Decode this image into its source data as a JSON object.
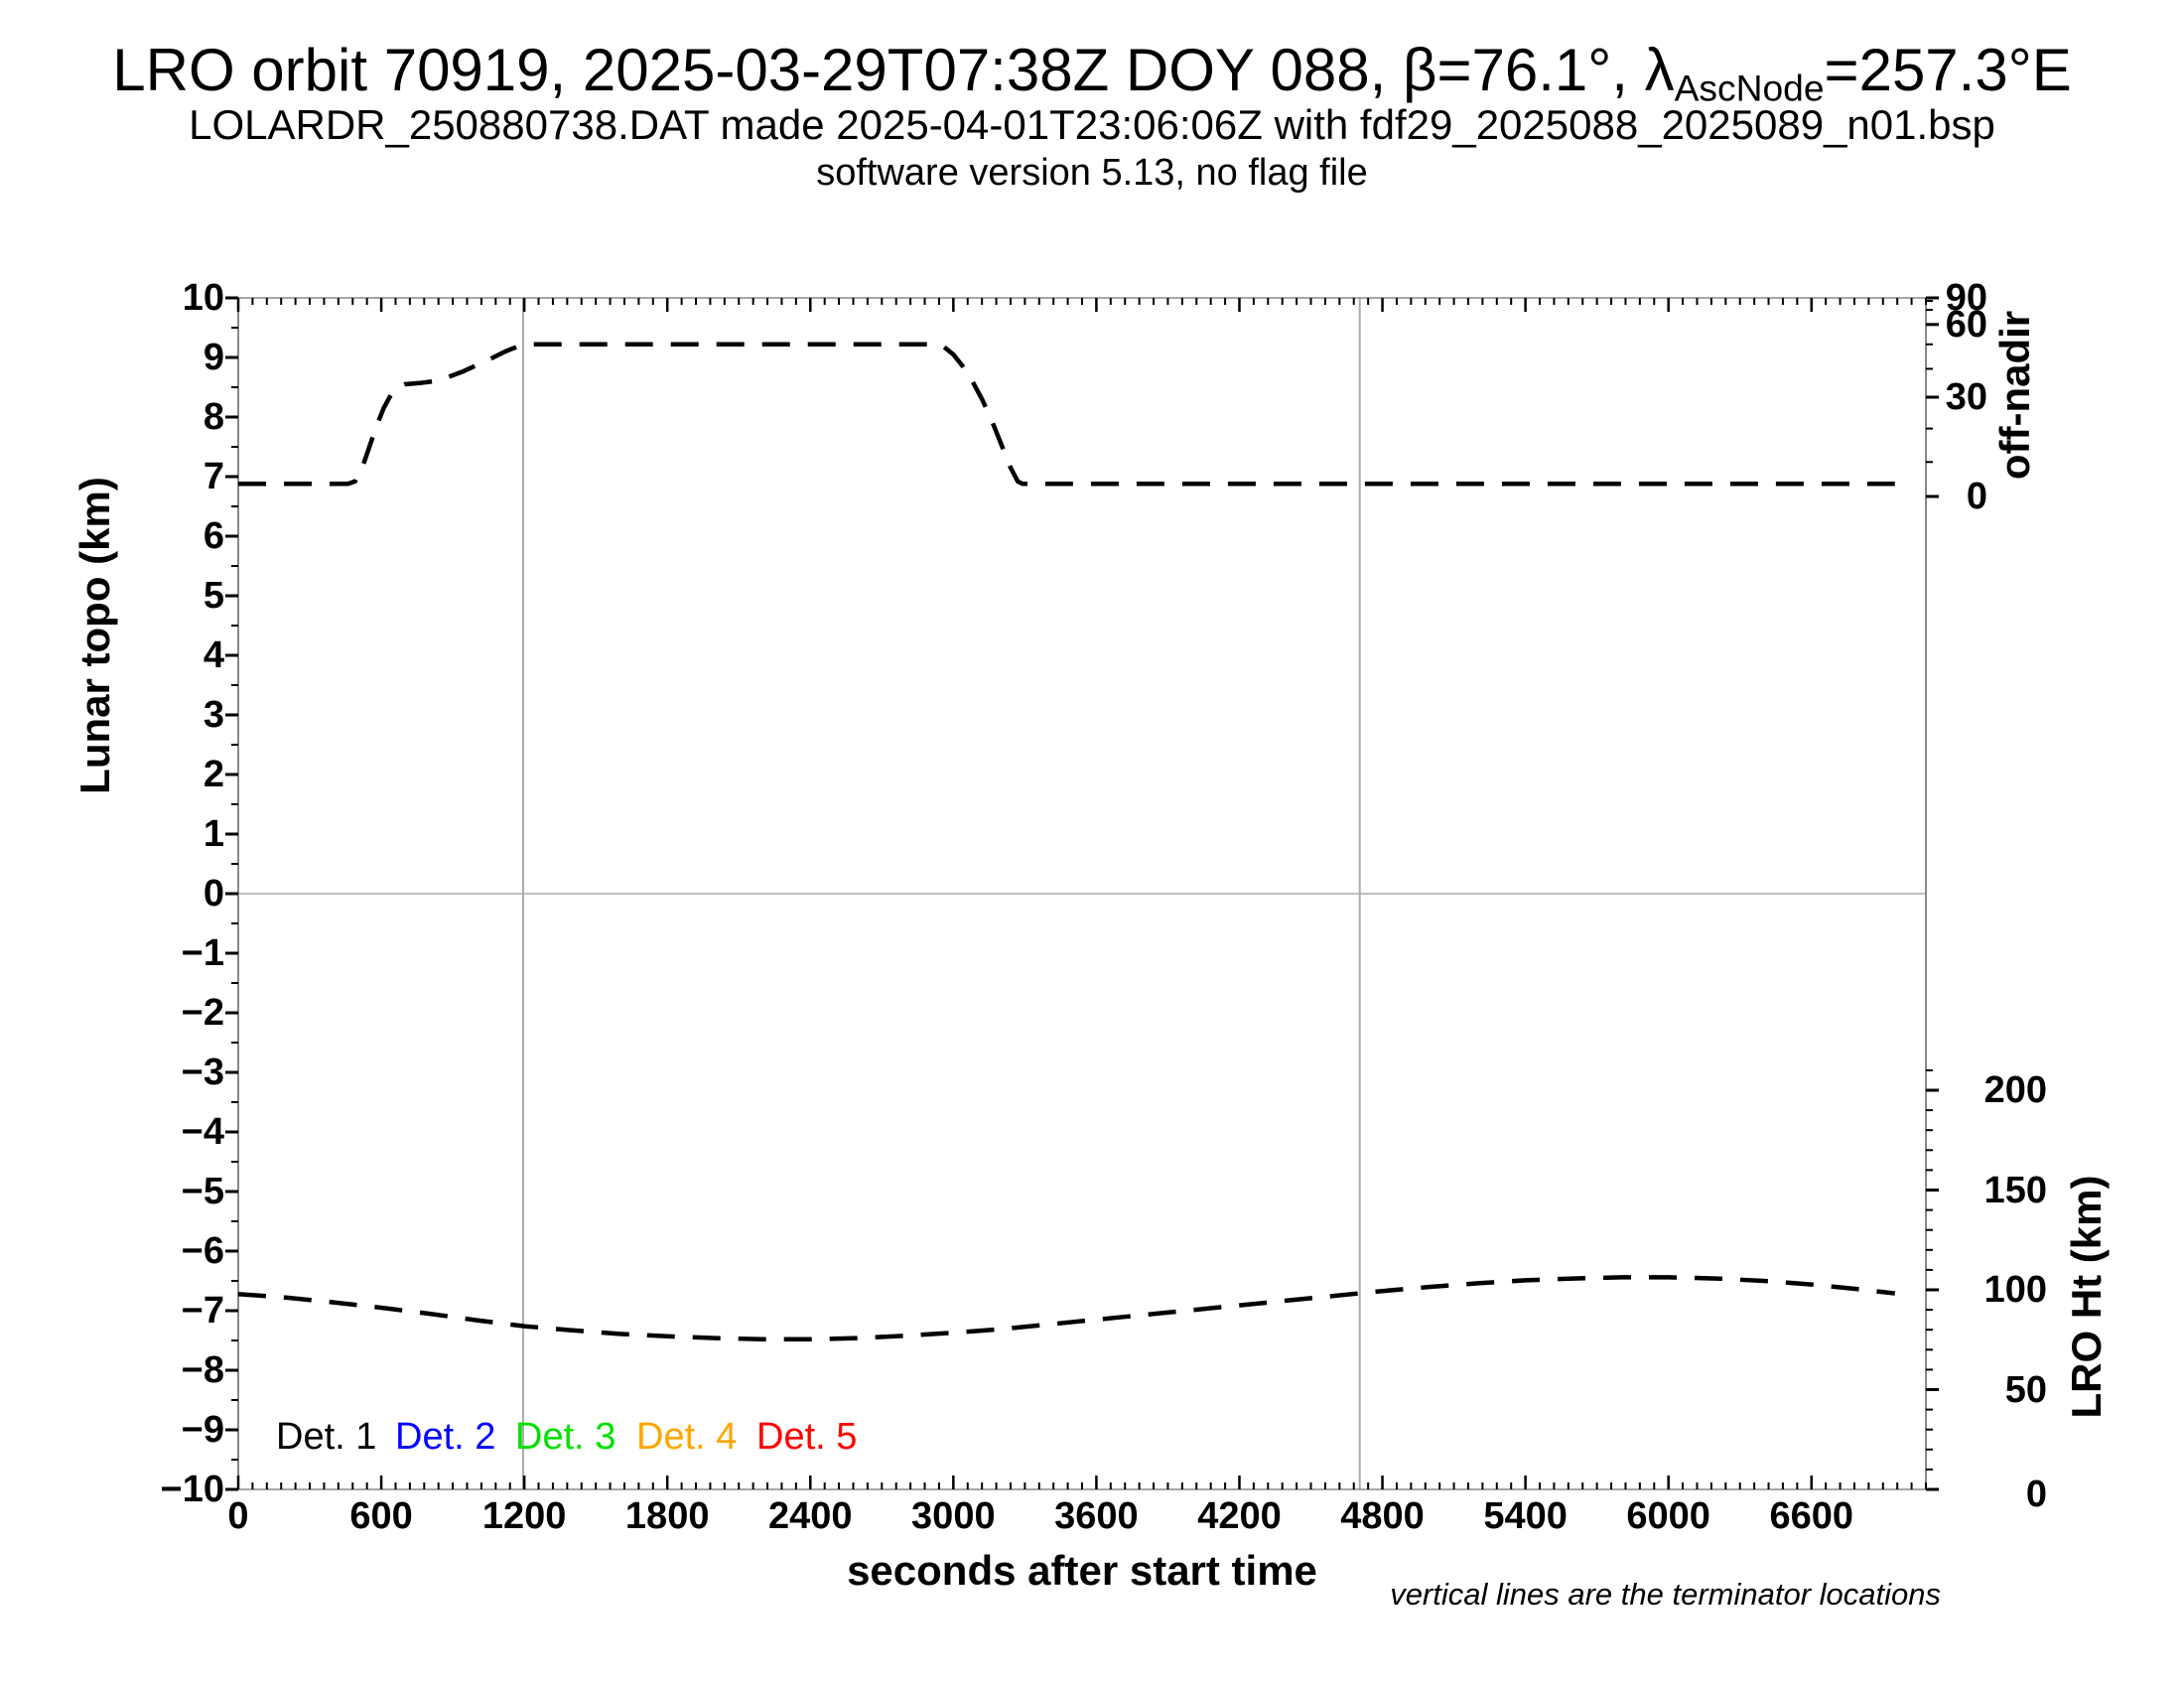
{
  "titles": {
    "line1_prefix": "LRO orbit 70919, 2025-03-29T07:38Z DOY 088, β=76.1°, λ",
    "line1_sub": "AscNode",
    "line1_suffix": "=257.3°E",
    "line2": "LOLARDR_250880738.DAT made 2025-04-01T23:06:06Z with fdf29_2025088_2025089_n01.bsp",
    "line3": "software version 5.13, no flag file"
  },
  "note": "vertical lines are the terminator locations",
  "chart_data": {
    "type": "line",
    "title": "LRO orbit 70919, 2025-03-29T07:38Z DOY 088, β=76.1°, λAscNode=257.3°E",
    "xlabel": "seconds after start time",
    "grid": false,
    "axes": {
      "x": {
        "min": 0,
        "max": 7080,
        "major_tick_step": 600,
        "minor_tick_step": 60,
        "labeled_ticks": [
          0,
          600,
          1200,
          1800,
          2400,
          3000,
          3600,
          4200,
          4800,
          5400,
          6000,
          6600
        ]
      },
      "left": {
        "label": "Lunar topo (km)",
        "min": -10,
        "max": 10,
        "major_tick_step": 1,
        "minor_tick_step": 0.5,
        "labeled_ticks": [
          10,
          9,
          8,
          7,
          6,
          5,
          4,
          3,
          2,
          1,
          0,
          -1,
          -2,
          -3,
          -4,
          -5,
          -6,
          -7,
          -8,
          -9,
          -10
        ]
      },
      "right_top": {
        "label": "off-nadir",
        "units": "degrees",
        "mapping": "sine",
        "labeled_ticks_deg": [
          90,
          60,
          30,
          0
        ],
        "minor_ticks_deg": [
          10,
          20,
          40,
          50,
          70,
          80
        ]
      },
      "right_bottom": {
        "label": "LRO Ht (km)",
        "labeled_ticks_km": [
          200,
          150,
          100,
          50,
          0
        ],
        "minor_tick_step_km": 10,
        "max_tick_km": 210
      }
    },
    "zero_line_topo_km": 0,
    "terminator_lines_s": [
      1195,
      4705
    ],
    "series": [
      {
        "name": "off-nadir angle (plotted on left scale, reads on off-nadir axis)",
        "color": "#000000",
        "style": "dashed",
        "points": [
          [
            0,
            6.88
          ],
          [
            150,
            6.88
          ],
          [
            300,
            6.88
          ],
          [
            460,
            6.88
          ],
          [
            490,
            6.92
          ],
          [
            520,
            7.15
          ],
          [
            550,
            7.5
          ],
          [
            580,
            7.85
          ],
          [
            610,
            8.15
          ],
          [
            640,
            8.37
          ],
          [
            670,
            8.5
          ],
          [
            700,
            8.55
          ],
          [
            760,
            8.57
          ],
          [
            820,
            8.6
          ],
          [
            880,
            8.67
          ],
          [
            940,
            8.76
          ],
          [
            1000,
            8.87
          ],
          [
            1060,
            8.98
          ],
          [
            1120,
            9.1
          ],
          [
            1170,
            9.18
          ],
          [
            1220,
            9.22
          ],
          [
            1500,
            9.22
          ],
          [
            1800,
            9.22
          ],
          [
            2100,
            9.22
          ],
          [
            2400,
            9.22
          ],
          [
            2700,
            9.22
          ],
          [
            2930,
            9.22
          ],
          [
            2960,
            9.18
          ],
          [
            3000,
            9.05
          ],
          [
            3040,
            8.85
          ],
          [
            3080,
            8.6
          ],
          [
            3120,
            8.3
          ],
          [
            3160,
            7.95
          ],
          [
            3200,
            7.55
          ],
          [
            3240,
            7.15
          ],
          [
            3270,
            6.92
          ],
          [
            3290,
            6.88
          ],
          [
            3600,
            6.88
          ],
          [
            4000,
            6.88
          ],
          [
            4400,
            6.88
          ],
          [
            4800,
            6.88
          ],
          [
            5200,
            6.88
          ],
          [
            5600,
            6.88
          ],
          [
            6000,
            6.88
          ],
          [
            6400,
            6.88
          ],
          [
            6800,
            6.88
          ],
          [
            6950,
            6.88
          ]
        ]
      },
      {
        "name": "LRO height (plotted on left scale, reads on LRO Ht axis)",
        "color": "#000000",
        "style": "dashed",
        "points": [
          [
            0,
            -6.72
          ],
          [
            200,
            -6.78
          ],
          [
            400,
            -6.86
          ],
          [
            600,
            -6.95
          ],
          [
            800,
            -7.05
          ],
          [
            1000,
            -7.16
          ],
          [
            1200,
            -7.26
          ],
          [
            1400,
            -7.33
          ],
          [
            1600,
            -7.39
          ],
          [
            1800,
            -7.43
          ],
          [
            2000,
            -7.46
          ],
          [
            2200,
            -7.48
          ],
          [
            2400,
            -7.48
          ],
          [
            2600,
            -7.46
          ],
          [
            2800,
            -7.42
          ],
          [
            3000,
            -7.37
          ],
          [
            3200,
            -7.31
          ],
          [
            3400,
            -7.23
          ],
          [
            3600,
            -7.15
          ],
          [
            3800,
            -7.07
          ],
          [
            4000,
            -6.99
          ],
          [
            4200,
            -6.91
          ],
          [
            4400,
            -6.83
          ],
          [
            4600,
            -6.75
          ],
          [
            4800,
            -6.67
          ],
          [
            5000,
            -6.6
          ],
          [
            5200,
            -6.54
          ],
          [
            5400,
            -6.49
          ],
          [
            5600,
            -6.46
          ],
          [
            5800,
            -6.44
          ],
          [
            6000,
            -6.44
          ],
          [
            6200,
            -6.46
          ],
          [
            6400,
            -6.5
          ],
          [
            6600,
            -6.56
          ],
          [
            6800,
            -6.64
          ],
          [
            6950,
            -6.71
          ]
        ]
      }
    ],
    "legend": [
      {
        "label": "Det. 1",
        "color": "#000000"
      },
      {
        "label": "Det. 2",
        "color": "#0000ff"
      },
      {
        "label": "Det. 3",
        "color": "#00e000"
      },
      {
        "label": "Det. 4",
        "color": "#ffa500"
      },
      {
        "label": "Det. 5",
        "color": "#ff0000"
      }
    ],
    "colors": {
      "curve": "#000000",
      "reference_lines": "#aaaaaa",
      "spines": "#888888",
      "ticks": "#000000"
    }
  }
}
